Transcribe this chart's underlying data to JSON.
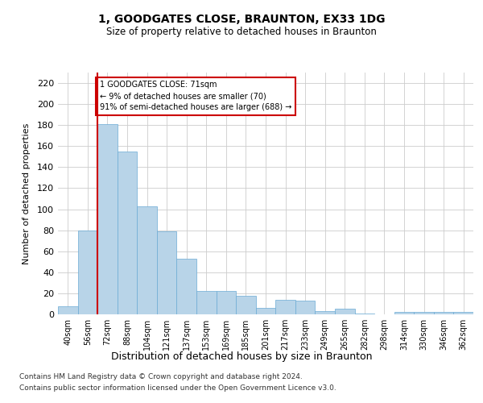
{
  "title1": "1, GOODGATES CLOSE, BRAUNTON, EX33 1DG",
  "title2": "Size of property relative to detached houses in Braunton",
  "xlabel": "Distribution of detached houses by size in Braunton",
  "ylabel": "Number of detached properties",
  "categories": [
    "40sqm",
    "56sqm",
    "72sqm",
    "88sqm",
    "104sqm",
    "121sqm",
    "137sqm",
    "153sqm",
    "169sqm",
    "185sqm",
    "201sqm",
    "217sqm",
    "233sqm",
    "249sqm",
    "265sqm",
    "282sqm",
    "298sqm",
    "314sqm",
    "330sqm",
    "346sqm",
    "362sqm"
  ],
  "values": [
    8,
    80,
    181,
    155,
    103,
    79,
    53,
    22,
    22,
    18,
    6,
    14,
    13,
    3,
    5,
    1,
    0,
    2,
    2,
    2,
    2
  ],
  "bar_color": "#b8d4e8",
  "bar_edge_color": "#6aaad4",
  "highlight_bar_index": 2,
  "highlight_line_color": "#cc0000",
  "annotation_text": "1 GOODGATES CLOSE: 71sqm\n← 9% of detached houses are smaller (70)\n91% of semi-detached houses are larger (688) →",
  "annotation_box_color": "#ffffff",
  "annotation_box_edge_color": "#cc0000",
  "ylim": [
    0,
    230
  ],
  "yticks": [
    0,
    20,
    40,
    60,
    80,
    100,
    120,
    140,
    160,
    180,
    200,
    220
  ],
  "footer1": "Contains HM Land Registry data © Crown copyright and database right 2024.",
  "footer2": "Contains public sector information licensed under the Open Government Licence v3.0.",
  "bg_color": "#ffffff",
  "grid_color": "#cccccc"
}
